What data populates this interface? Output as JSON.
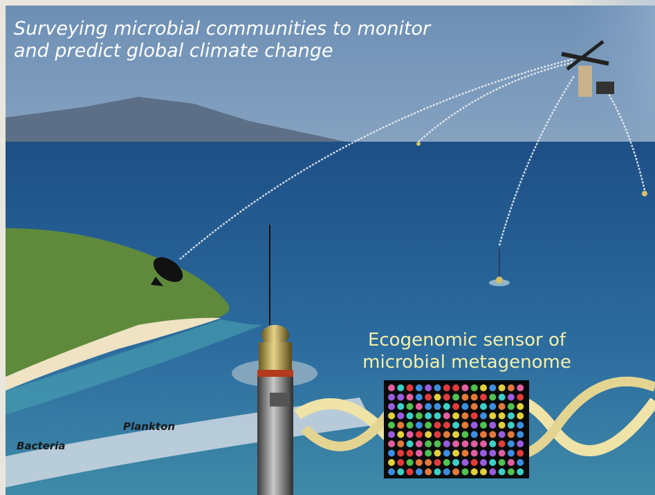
{
  "title": [
    "Surveying microbial communities to monitor",
    "and predict global climate change"
  ],
  "sensor_label": [
    "Ecogenomic sensor of",
    "microbial metagenome"
  ],
  "labels": {
    "plankton": "Plankton",
    "bacteria": "Bacteria"
  }
}
